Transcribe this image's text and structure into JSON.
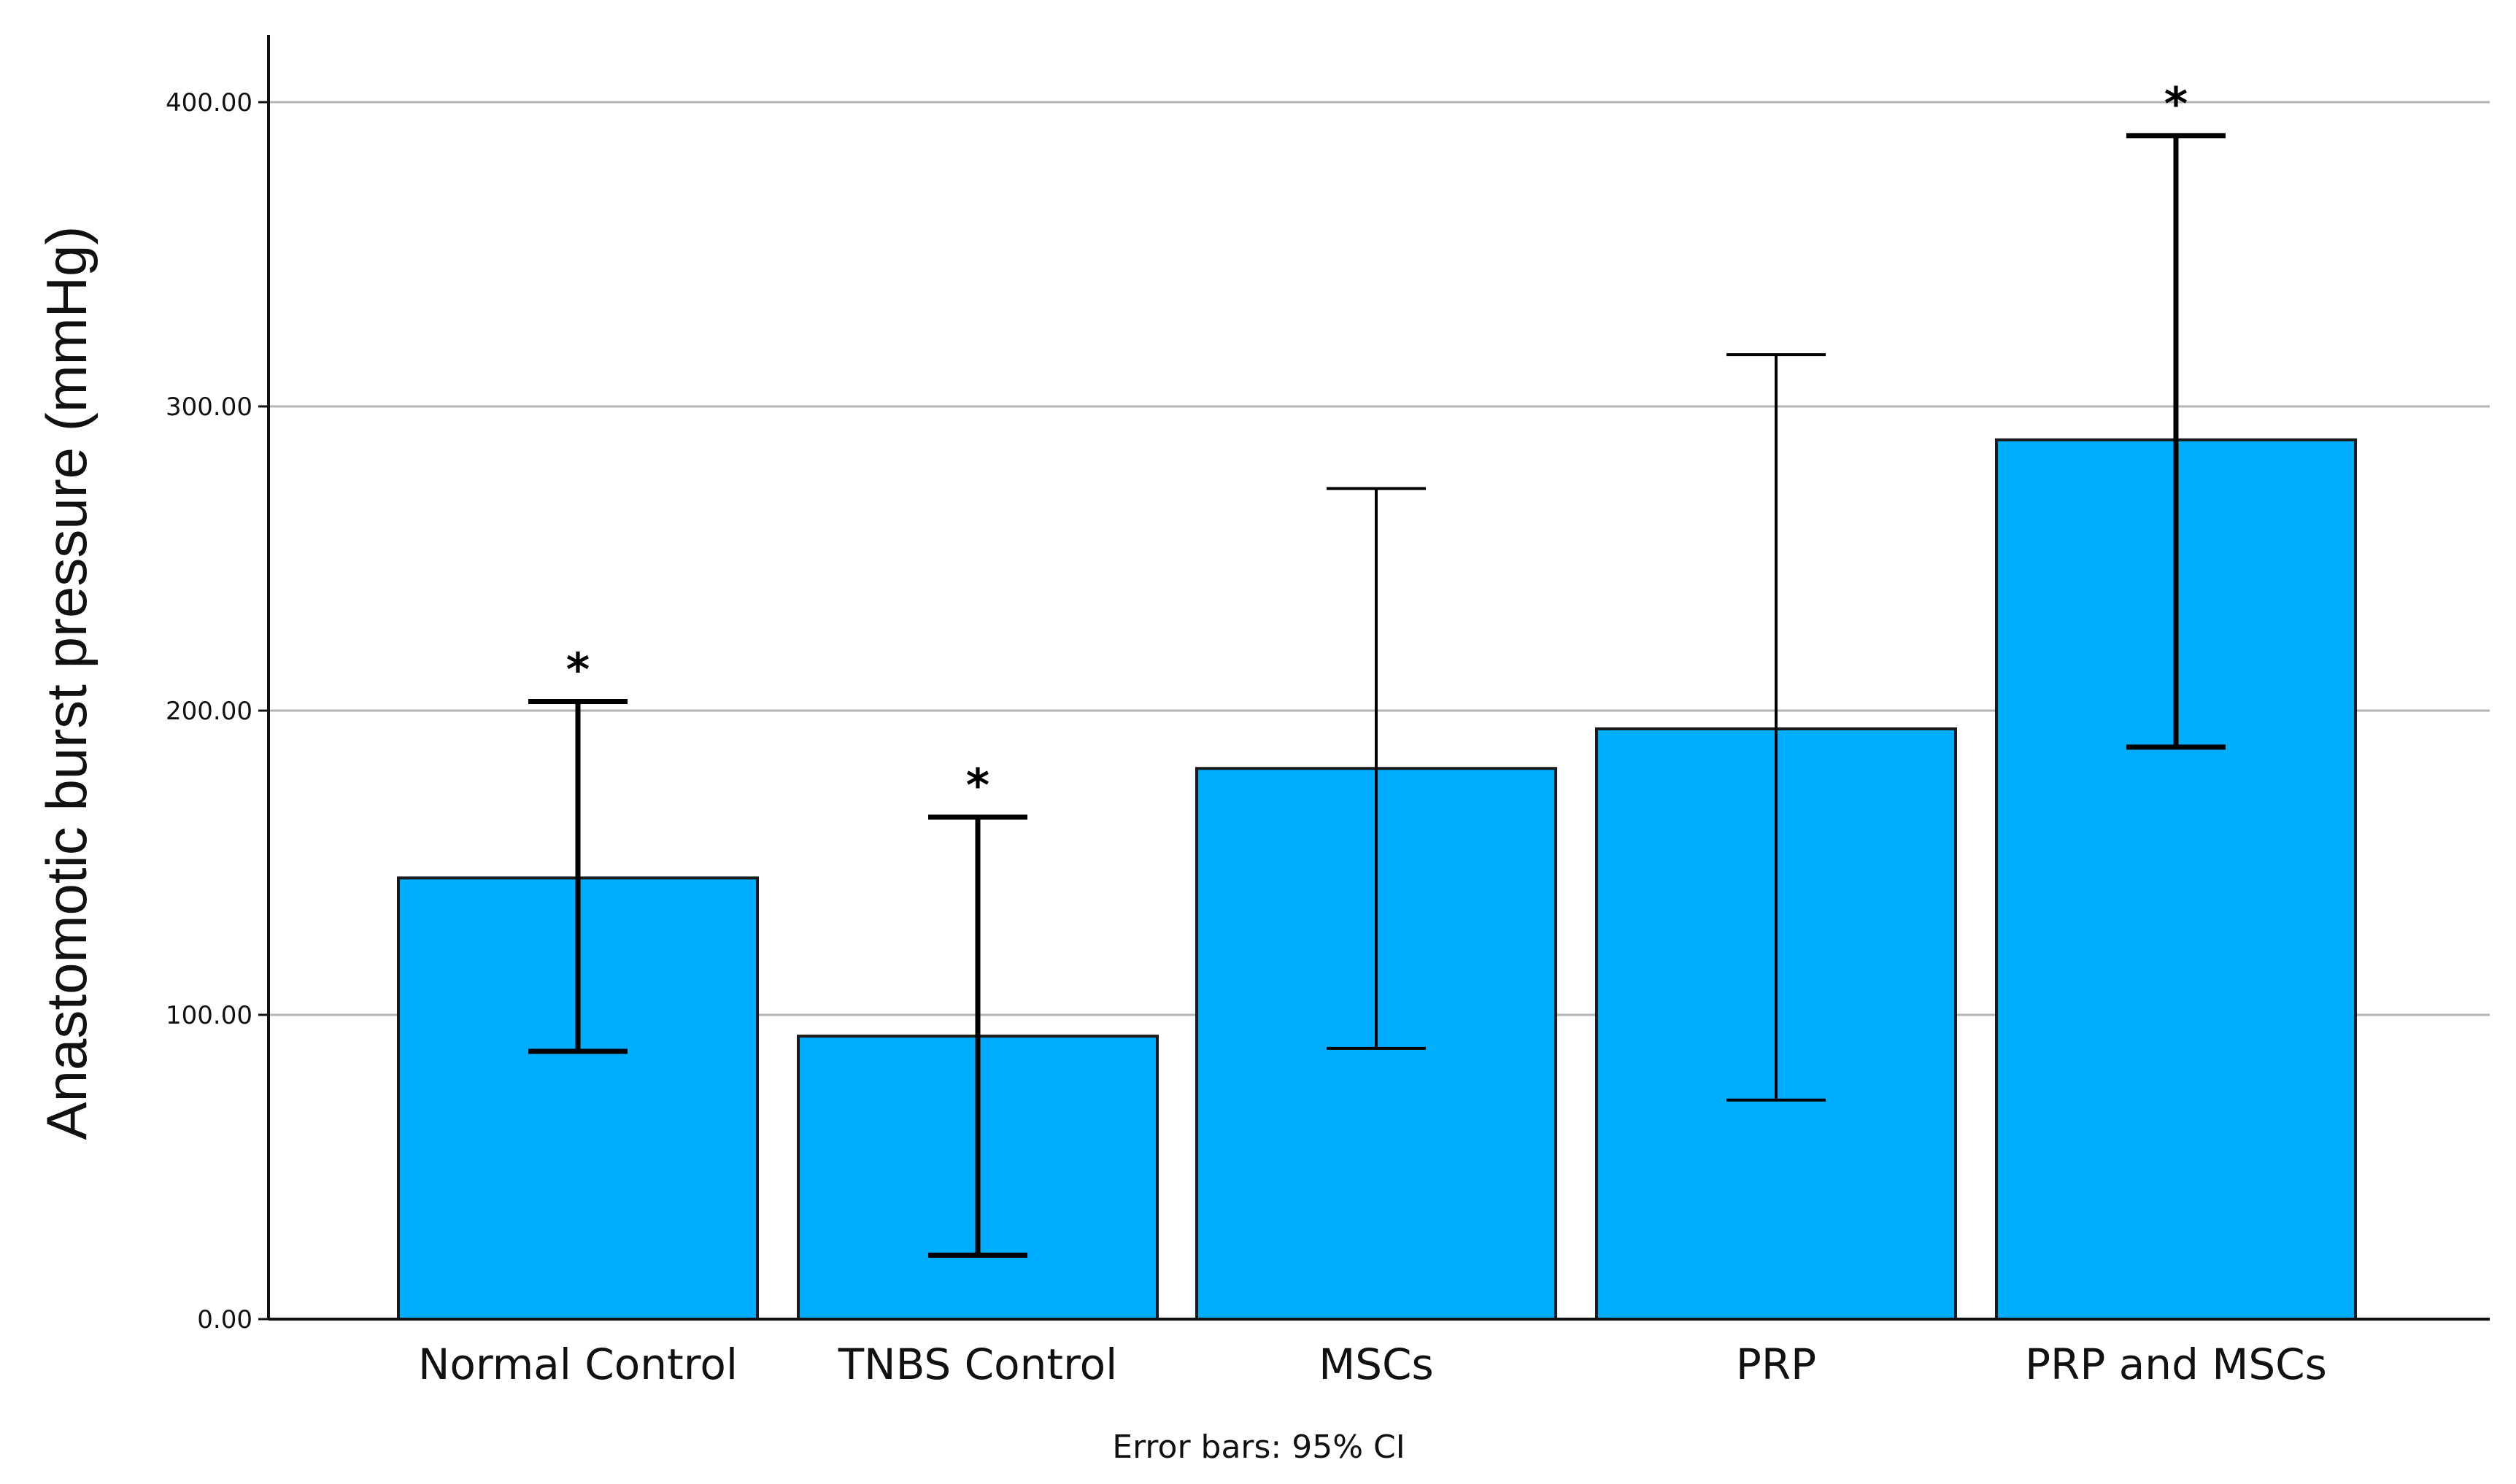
{
  "chart_data": {
    "type": "bar",
    "title": "",
    "xlabel": "",
    "ylabel": "Anastomotic burst pressure (mmHg)",
    "ylim": [
      0,
      420
    ],
    "yticks": [
      0,
      100,
      200,
      300,
      400
    ],
    "ytick_labels": [
      "0.00",
      "100.00",
      "200.00",
      "300.00",
      "400.00"
    ],
    "grid": true,
    "bar_color": "#00AEFF",
    "categories": [
      "Normal Control",
      "TNBS Control",
      "MSCs",
      "PRP",
      "PRP and MSCs"
    ],
    "values": [
      145,
      93,
      181,
      194,
      289
    ],
    "error_low": [
      88,
      21,
      89,
      72,
      188
    ],
    "error_high": [
      203,
      165,
      273,
      317,
      389
    ],
    "significance": [
      "*",
      "*",
      "",
      "",
      "*"
    ],
    "footnote": "Error bars: 95% CI"
  }
}
